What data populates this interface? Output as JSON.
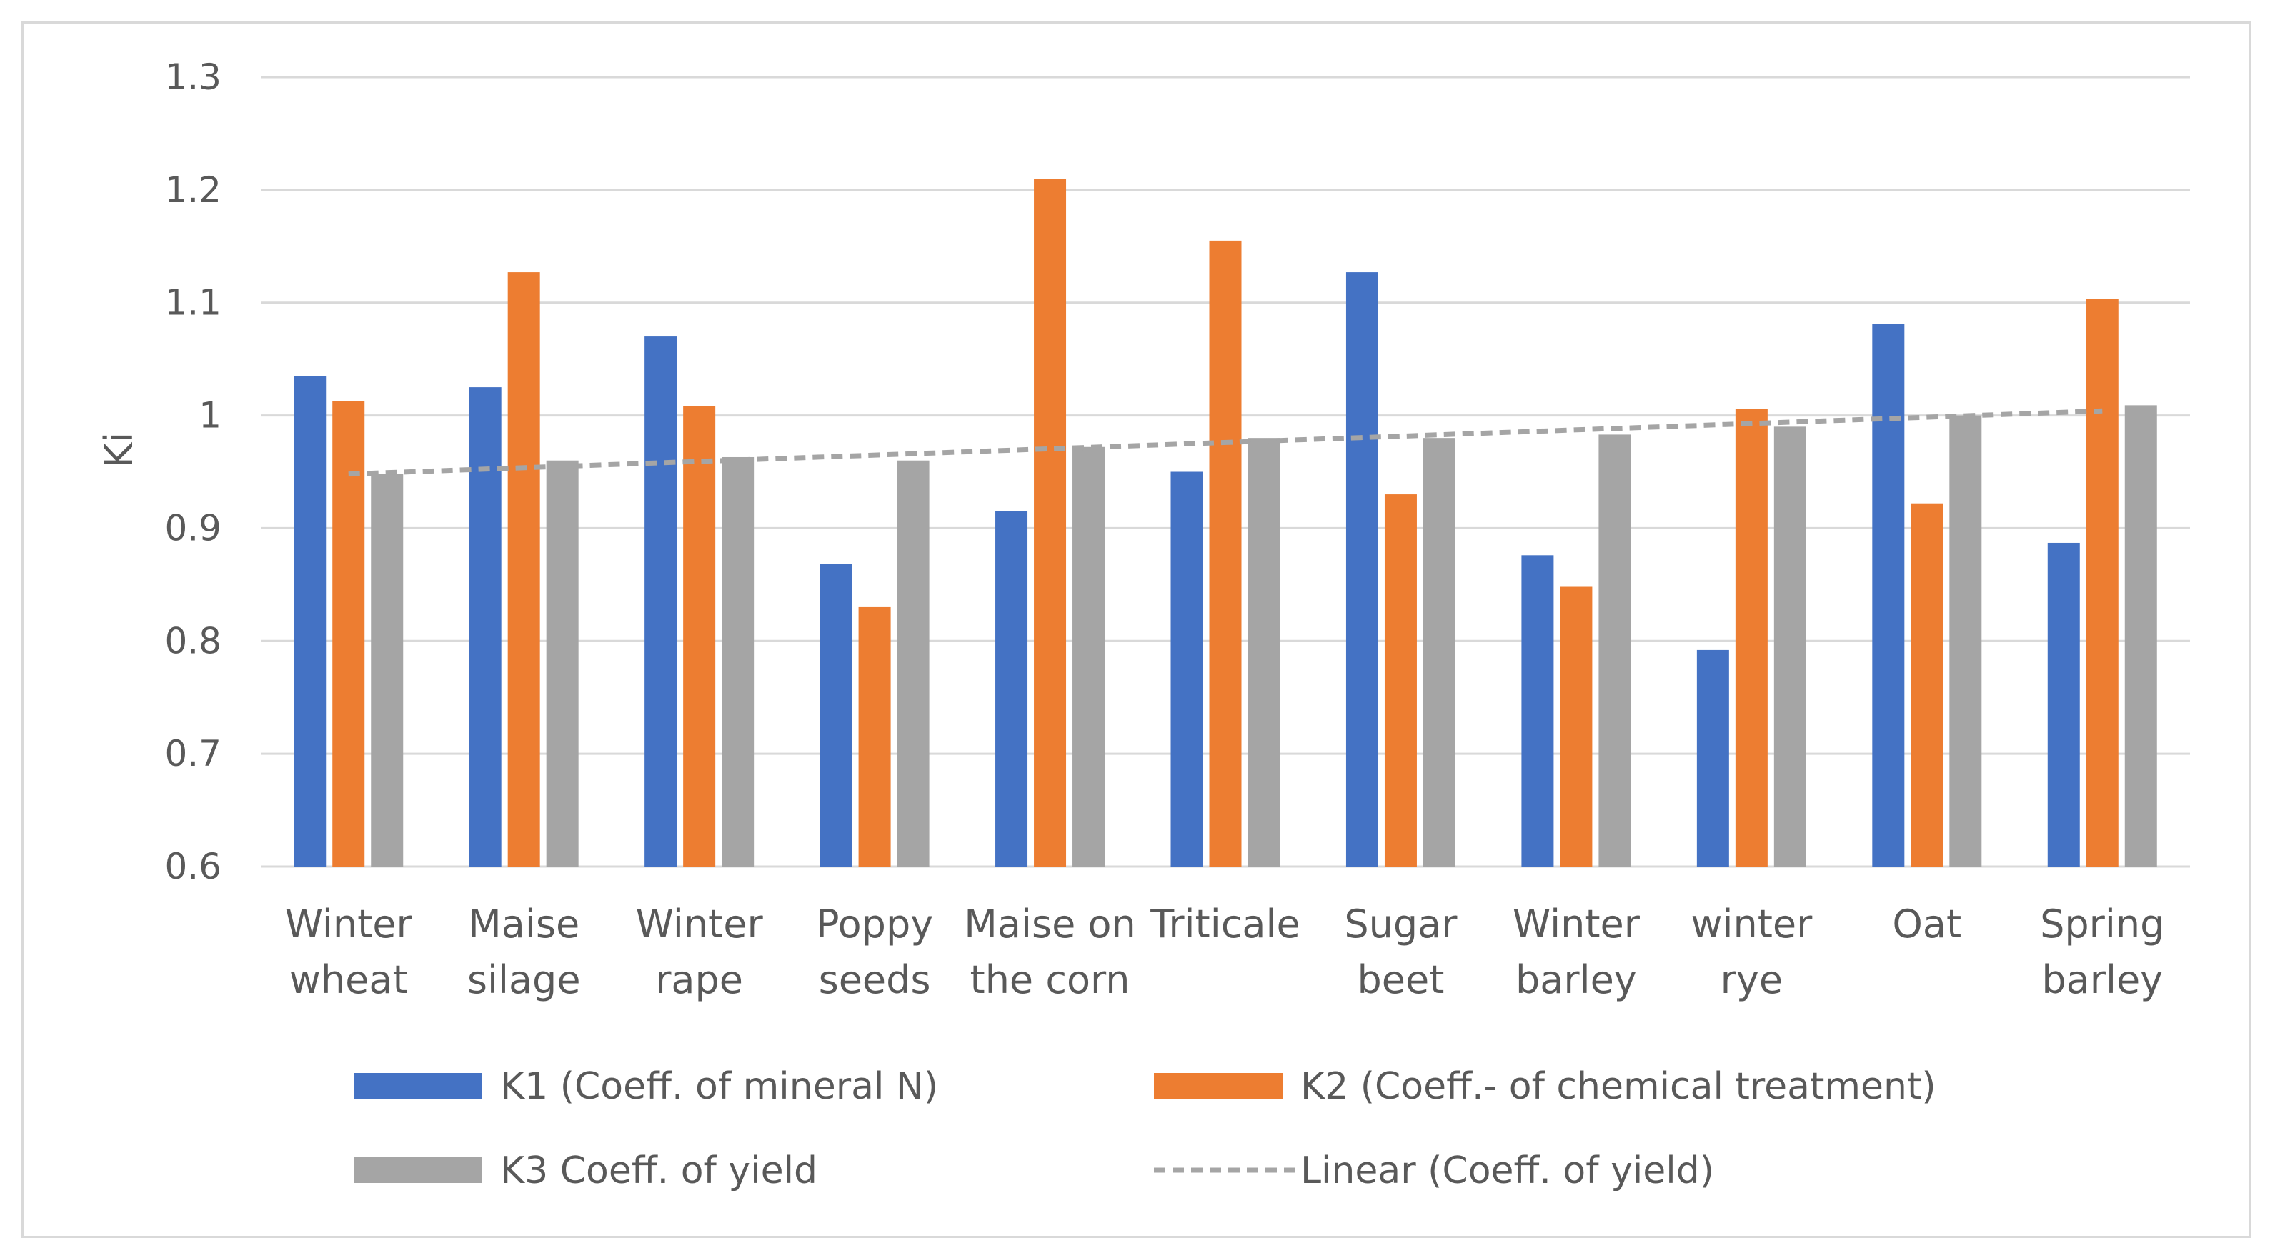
{
  "chart_data": {
    "type": "bar",
    "categories": [
      [
        "Winter",
        "wheat"
      ],
      [
        "Maise",
        "silage"
      ],
      [
        "Winter",
        "rape"
      ],
      [
        "Poppy",
        "seeds"
      ],
      [
        "Maise on",
        "the corn"
      ],
      [
        "Triticale"
      ],
      [
        "Sugar",
        "beet"
      ],
      [
        "Winter",
        "barley"
      ],
      [
        "winter",
        "rye"
      ],
      [
        "Oat"
      ],
      [
        "Spring",
        "barley"
      ]
    ],
    "series": [
      {
        "name": "K1 (Coeff. of mineral N)",
        "color": "#4472c4",
        "values": [
          1.035,
          1.025,
          1.07,
          0.868,
          0.915,
          0.95,
          1.127,
          0.876,
          0.792,
          1.081,
          0.887
        ]
      },
      {
        "name": "K2 (Coeff.- of chemical treatment)",
        "color": "#ed7d31",
        "values": [
          1.013,
          1.127,
          1.008,
          0.83,
          1.21,
          1.155,
          0.93,
          0.848,
          1.006,
          0.922,
          1.103
        ]
      },
      {
        "name": "K3 Coeff. of yield",
        "color": "#a5a5a5",
        "values": [
          0.948,
          0.96,
          0.963,
          0.96,
          0.972,
          0.98,
          0.98,
          0.983,
          0.99,
          1.0,
          1.009
        ]
      }
    ],
    "trendline": {
      "name": "Linear (Coeff. of yield)",
      "color": "#a5a5a5",
      "style": "dashed",
      "start": 0.948,
      "end": 1.004
    },
    "ylabel": "Ki",
    "xlabel": "",
    "title": "",
    "ylim": [
      0.6,
      1.3
    ],
    "yticks": [
      "0.6",
      "0.7",
      "0.8",
      "0.9",
      "1",
      "1.1",
      "1.2",
      "1.3"
    ],
    "grid": true,
    "legend_position": "bottom"
  }
}
